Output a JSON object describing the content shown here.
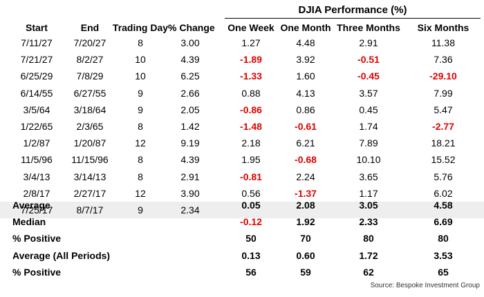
{
  "chart_data": {
    "type": "table",
    "group_header": "DJIA Performance (%)",
    "columns": [
      "Start",
      "End",
      "Trading Day",
      "% Change",
      "One Week",
      "One Month",
      "Three Months",
      "Six Months"
    ],
    "rows": [
      [
        "7/11/27",
        "7/20/27",
        "8",
        "3.00",
        "1.27",
        "4.48",
        "2.91",
        "11.38"
      ],
      [
        "7/21/27",
        "8/2/27",
        "10",
        "4.39",
        "-1.89",
        "3.92",
        "-0.51",
        "7.36"
      ],
      [
        "6/25/29",
        "7/8/29",
        "10",
        "6.25",
        "-1.33",
        "1.60",
        "-0.45",
        "-29.10"
      ],
      [
        "6/14/55",
        "6/27/55",
        "9",
        "2.66",
        "0.88",
        "4.13",
        "3.57",
        "7.99"
      ],
      [
        "3/5/64",
        "3/18/64",
        "9",
        "2.05",
        "-0.86",
        "0.86",
        "0.45",
        "5.47"
      ],
      [
        "1/22/65",
        "2/3/65",
        "8",
        "1.42",
        "-1.48",
        "-0.61",
        "1.74",
        "-2.77"
      ],
      [
        "1/2/87",
        "1/20/87",
        "12",
        "9.19",
        "2.18",
        "6.21",
        "7.89",
        "18.21"
      ],
      [
        "11/5/96",
        "11/15/96",
        "8",
        "4.39",
        "1.95",
        "-0.68",
        "10.10",
        "15.52"
      ],
      [
        "3/4/13",
        "3/14/13",
        "8",
        "2.91",
        "-0.81",
        "2.24",
        "3.65",
        "5.76"
      ],
      [
        "2/8/17",
        "2/27/17",
        "12",
        "3.90",
        "0.56",
        "-1.37",
        "1.17",
        "6.02"
      ],
      [
        "7/25/17",
        "8/7/17",
        "9",
        "2.34",
        "",
        "",
        "",
        ""
      ]
    ],
    "summary": [
      {
        "label": "Average",
        "values": [
          "0.05",
          "2.08",
          "3.05",
          "4.58"
        ]
      },
      {
        "label": "Median",
        "values": [
          "-0.12",
          "1.92",
          "2.33",
          "6.69"
        ]
      },
      {
        "label": "% Positive",
        "values": [
          "50",
          "70",
          "80",
          "80"
        ]
      },
      {
        "label": "Average (All Periods)",
        "values": [
          "0.13",
          "0.60",
          "1.72",
          "3.53"
        ]
      },
      {
        "label": "% Positive",
        "values": [
          "56",
          "59",
          "62",
          "65"
        ]
      }
    ],
    "negative_color": "#e00000",
    "highlight_row_color": "#eeeeee"
  },
  "source": "Source: Bespoke Investment Group"
}
